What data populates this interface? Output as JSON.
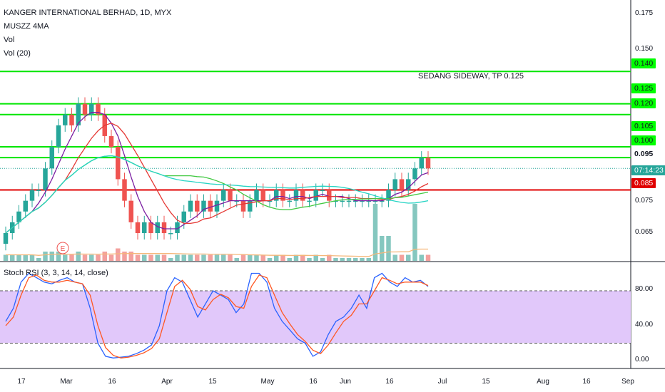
{
  "legend": {
    "title": "KANGER INTERNATIONAL BERHAD, 1D, MYX",
    "ma": "MUSZZ 4MA",
    "vol": "Vol",
    "vol20": "Vol (20)"
  },
  "annotation": "SEDANG SIDEWAY, TP 0.125",
  "rsi_legend": "Stoch RSI (3, 3, 14, 14, close)",
  "earnings_marker": "E",
  "colors": {
    "up": "#26a69a",
    "down": "#ef5350",
    "level_green": "#00e600",
    "level_red": "#e00000",
    "ma_fast": "#7b1fa2",
    "ma_slow": "#e53935",
    "ma_green": "#43c943",
    "ma_cyan": "#26d4c4",
    "k": "#2962ff",
    "d": "#ff5722",
    "band": "#e1c8fa"
  },
  "price_scale": [
    "0.175",
    "0.150",
    "0.065",
    "0.075"
  ],
  "rsi_scale": [
    "80.00",
    "40.00",
    "0.00"
  ],
  "level_tags": [
    {
      "label": "0.140",
      "bg": "#00ff00"
    },
    {
      "label": "0.125",
      "bg": "#00ff00"
    },
    {
      "label": "0.120",
      "bg": "#00ff00"
    },
    {
      "label": "0.105",
      "bg": "#00ff00"
    },
    {
      "label": "0.100",
      "bg": "#00ff00"
    },
    {
      "label": "0.095",
      "bg": "#ffffff"
    },
    {
      "label": "07:14:23",
      "bg": "#26a69a"
    },
    {
      "label": "0.085",
      "bg": "#e00000"
    }
  ],
  "time_axis": [
    "17",
    "Mar",
    "16",
    "Apr",
    "15",
    "May",
    "16",
    "Jun",
    "16",
    "Jul",
    "15",
    "Aug",
    "16",
    "Sep"
  ],
  "chart_data": [
    {
      "type": "candlestick",
      "title": "KANGER INTERNATIONAL BERHAD, 1D, MYX",
      "yticks": [
        0.065,
        0.075,
        0.095,
        0.1,
        0.105,
        0.12,
        0.125,
        0.14,
        0.15,
        0.175
      ],
      "ylim": [
        0.058,
        0.18
      ],
      "x": [
        "17",
        "Mar",
        "16",
        "Apr",
        "15",
        "May",
        "16",
        "Jun",
        "16",
        "Jul",
        "15",
        "Aug",
        "16",
        "Sep"
      ],
      "horizontal_levels": [
        0.14,
        0.125,
        0.12,
        0.105,
        0.1,
        0.085
      ],
      "last_price": 0.095,
      "candles_close": [
        0.065,
        0.07,
        0.075,
        0.08,
        0.085,
        0.085,
        0.095,
        0.105,
        0.115,
        0.12,
        0.115,
        0.125,
        0.12,
        0.125,
        0.12,
        0.11,
        0.105,
        0.09,
        0.08,
        0.07,
        0.065,
        0.07,
        0.065,
        0.07,
        0.065,
        0.065,
        0.07,
        0.075,
        0.08,
        0.075,
        0.08,
        0.075,
        0.08,
        0.085,
        0.08,
        0.08,
        0.075,
        0.08,
        0.085,
        0.08,
        0.08,
        0.085,
        0.08,
        0.08,
        0.085,
        0.08,
        0.08,
        0.085,
        0.085,
        0.08,
        0.08,
        0.08,
        0.08,
        0.08,
        0.08,
        0.08,
        0.08,
        0.08,
        0.085,
        0.09,
        0.085,
        0.09,
        0.095,
        0.1,
        0.095
      ]
    },
    {
      "type": "line",
      "title": "Stoch RSI (3, 3, 14, 14, close)",
      "yticks": [
        0,
        40,
        80
      ],
      "ylim": [
        -10,
        110
      ],
      "band": [
        20,
        80
      ],
      "series": [
        {
          "values": [
            45,
            60,
            90,
            100,
            95,
            90,
            88,
            92,
            95,
            90,
            88,
            60,
            20,
            5,
            3,
            4,
            5,
            8,
            12,
            18,
            40,
            80,
            95,
            90,
            70,
            50,
            65,
            80,
            75,
            70,
            55,
            65,
            100,
            100,
            90,
            60,
            45,
            35,
            25,
            20,
            5,
            10,
            30,
            45,
            50,
            60,
            75,
            60,
            95,
            100,
            90,
            85,
            95,
            90,
            92,
            85
          ]
        },
        {
          "values": [
            40,
            50,
            75,
            95,
            98,
            92,
            90,
            90,
            92,
            90,
            88,
            75,
            40,
            15,
            6,
            3,
            4,
            6,
            9,
            14,
            25,
            55,
            85,
            92,
            82,
            62,
            58,
            70,
            76,
            72,
            62,
            60,
            85,
            98,
            95,
            75,
            55,
            42,
            30,
            22,
            12,
            8,
            18,
            32,
            45,
            52,
            65,
            65,
            80,
            95,
            92,
            88,
            90,
            90,
            90,
            86
          ]
        }
      ]
    }
  ]
}
